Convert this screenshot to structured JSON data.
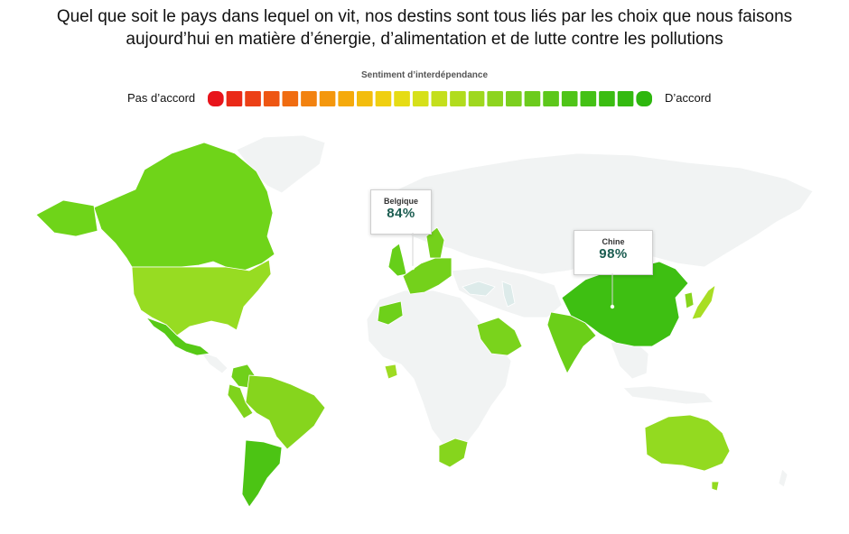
{
  "title": {
    "line1": "Quel que soit le pays dans lequel on vit, nos destins sont tous liés par les choix que nous faisons",
    "line2": "aujourd’hui en matière d’énergie, d’alimentation et de lutte contre les pollutions"
  },
  "legend": {
    "title": "Sentiment d’interdépendance",
    "left_label": "Pas d’accord",
    "right_label": "D’accord",
    "color_steps": [
      "#e8141b",
      "#ea2a18",
      "#ec4016",
      "#ee5613",
      "#f06c11",
      "#f2820f",
      "#f4970d",
      "#f5aa0c",
      "#f3bd0d",
      "#f0cf10",
      "#e6dc14",
      "#d6e01a",
      "#c4df1c",
      "#b1dc1e",
      "#9fd81f",
      "#8dd41f",
      "#7ccf1f",
      "#6ccb1d",
      "#5dc71b",
      "#4fc418",
      "#44c115",
      "#3bbd12",
      "#34ba10",
      "#2eb70e"
    ]
  },
  "callouts": [
    {
      "country": "Belgique",
      "value": "84%"
    },
    {
      "country": "Chine",
      "value": "98%"
    }
  ],
  "colors": {
    "no_data": "#f1f3f3",
    "border": "#ffffff",
    "sea": "#ddebea",
    "canada": "#6fd419",
    "usa": "#97dc22",
    "mexico": "#57c916",
    "brazil": "#86d51d",
    "argentina": "#4cc414",
    "colombia": "#70d01a",
    "peru": "#7fd31c",
    "europe": "#74d11b",
    "uk": "#66cf19",
    "spain": "#6ed01a",
    "saudi": "#7ad31c",
    "south_africa": "#86d51d",
    "nigeria": "#9edb22",
    "china": "#3ebf12",
    "india": "#6bcf19",
    "japan": "#a8de24",
    "korea": "#86d51d",
    "australia": "#93da20"
  }
}
